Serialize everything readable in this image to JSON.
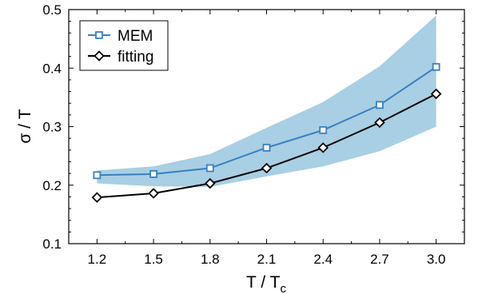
{
  "chart_data": {
    "type": "line",
    "x": [
      1.2,
      1.5,
      1.8,
      2.1,
      2.4,
      2.7,
      3.0
    ],
    "xlim": [
      1.05,
      3.15
    ],
    "ylim": [
      0.1,
      0.5
    ],
    "x_ticks": [
      "1.2",
      "1.5",
      "1.8",
      "2.1",
      "2.4",
      "2.7",
      "3.0"
    ],
    "y_ticks": [
      "0.1",
      "0.2",
      "0.3",
      "0.4",
      "0.5"
    ],
    "y_tick_values": [
      0.1,
      0.2,
      0.3,
      0.4,
      0.5
    ],
    "xlabel_main": "T / T",
    "xlabel_sub": "c",
    "ylabel": "σ / T",
    "legend_position": "top-left",
    "grid": false,
    "series": [
      {
        "name": "MEM",
        "marker": "square",
        "color": "#3a7fc1",
        "values": [
          0.217,
          0.219,
          0.229,
          0.264,
          0.294,
          0.337,
          0.402
        ],
        "band_upper": [
          0.225,
          0.232,
          0.253,
          0.298,
          0.342,
          0.403,
          0.49
        ],
        "band_lower": [
          0.203,
          0.198,
          0.197,
          0.215,
          0.232,
          0.258,
          0.3
        ],
        "band_color": "#a8cfe3"
      },
      {
        "name": "fitting",
        "marker": "diamond",
        "color": "#000000",
        "values": [
          0.179,
          0.186,
          0.203,
          0.229,
          0.264,
          0.307,
          0.356
        ]
      }
    ]
  }
}
